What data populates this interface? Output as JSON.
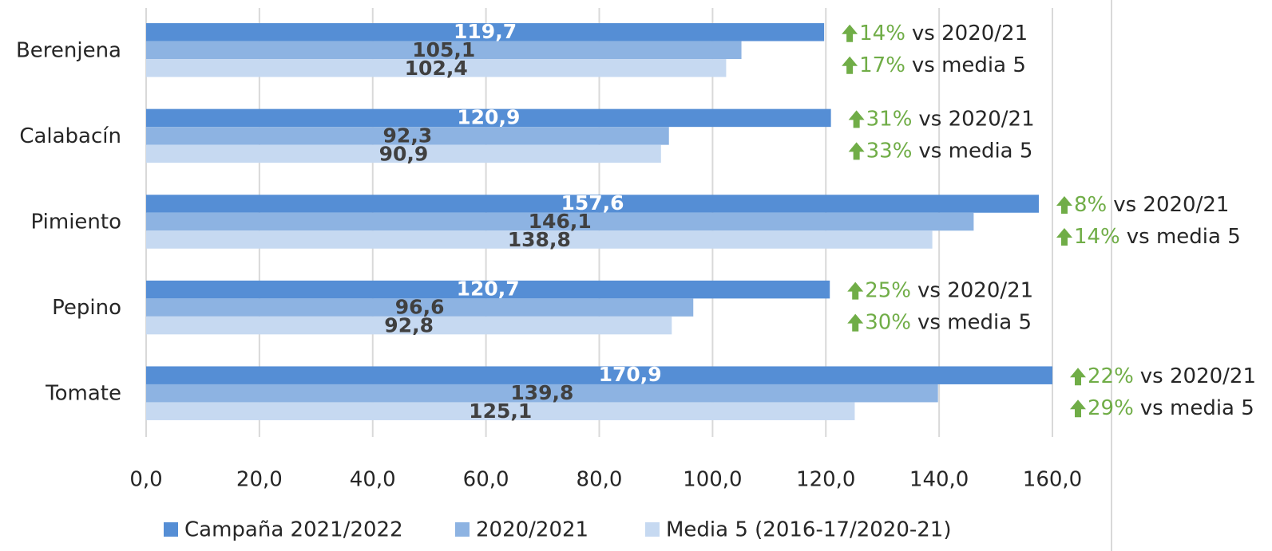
{
  "chart_data": {
    "type": "bar",
    "orientation": "horizontal",
    "categories": [
      "Berenjena",
      "Calabacín",
      "Pimiento",
      "Pepino",
      "Tomate"
    ],
    "series": [
      {
        "name": "Campaña 2021/2022",
        "color": "#558ed5",
        "values": [
          119.7,
          120.9,
          157.6,
          120.7,
          170.9
        ],
        "value_labels": [
          "119,7",
          "120,9",
          "157,6",
          "120,7",
          "170,9"
        ]
      },
      {
        "name": "2020/2021",
        "color": "#8db3e2",
        "values": [
          105.1,
          92.3,
          146.1,
          96.6,
          139.8
        ],
        "value_labels": [
          "105,1",
          "92,3",
          "146,1",
          "96,6",
          "139,8"
        ]
      },
      {
        "name": "Media 5 (2016-17/2020-21)",
        "color": "#c6d9f1",
        "values": [
          102.4,
          90.9,
          138.8,
          92.8,
          125.1
        ],
        "value_labels": [
          "102,4",
          "90,9",
          "138,8",
          "92,8",
          "125,1"
        ]
      }
    ],
    "xlim": [
      0,
      160
    ],
    "xticks": [
      {
        "value": 0,
        "label": "0,0"
      },
      {
        "value": 20,
        "label": "20,0"
      },
      {
        "value": 40,
        "label": "40,0"
      },
      {
        "value": 60,
        "label": "60,0"
      },
      {
        "value": 80,
        "label": "80,0"
      },
      {
        "value": 100,
        "label": "100,0"
      },
      {
        "value": 120,
        "label": "120,0"
      },
      {
        "value": 140,
        "label": "140,0"
      },
      {
        "value": 160,
        "label": "160,0"
      }
    ],
    "grid": true,
    "legend": "bottom",
    "annotation_color": "#70ad47",
    "annotations": [
      [
        {
          "pct": "14%",
          "text": "vs 2020/21"
        },
        {
          "pct": "17%",
          "text": "vs media 5"
        }
      ],
      [
        {
          "pct": "31%",
          "text": "vs 2020/21"
        },
        {
          "pct": "33%",
          "text": "vs media 5"
        }
      ],
      [
        {
          "pct": "8%",
          "text": "vs 2020/21"
        },
        {
          "pct": "14%",
          "text": "vs media 5"
        }
      ],
      [
        {
          "pct": "25%",
          "text": "vs 2020/21"
        },
        {
          "pct": "30%",
          "text": "vs media 5"
        }
      ],
      [
        {
          "pct": "22%",
          "text": "vs 2020/21"
        },
        {
          "pct": "29%",
          "text": "vs media 5"
        }
      ]
    ]
  }
}
